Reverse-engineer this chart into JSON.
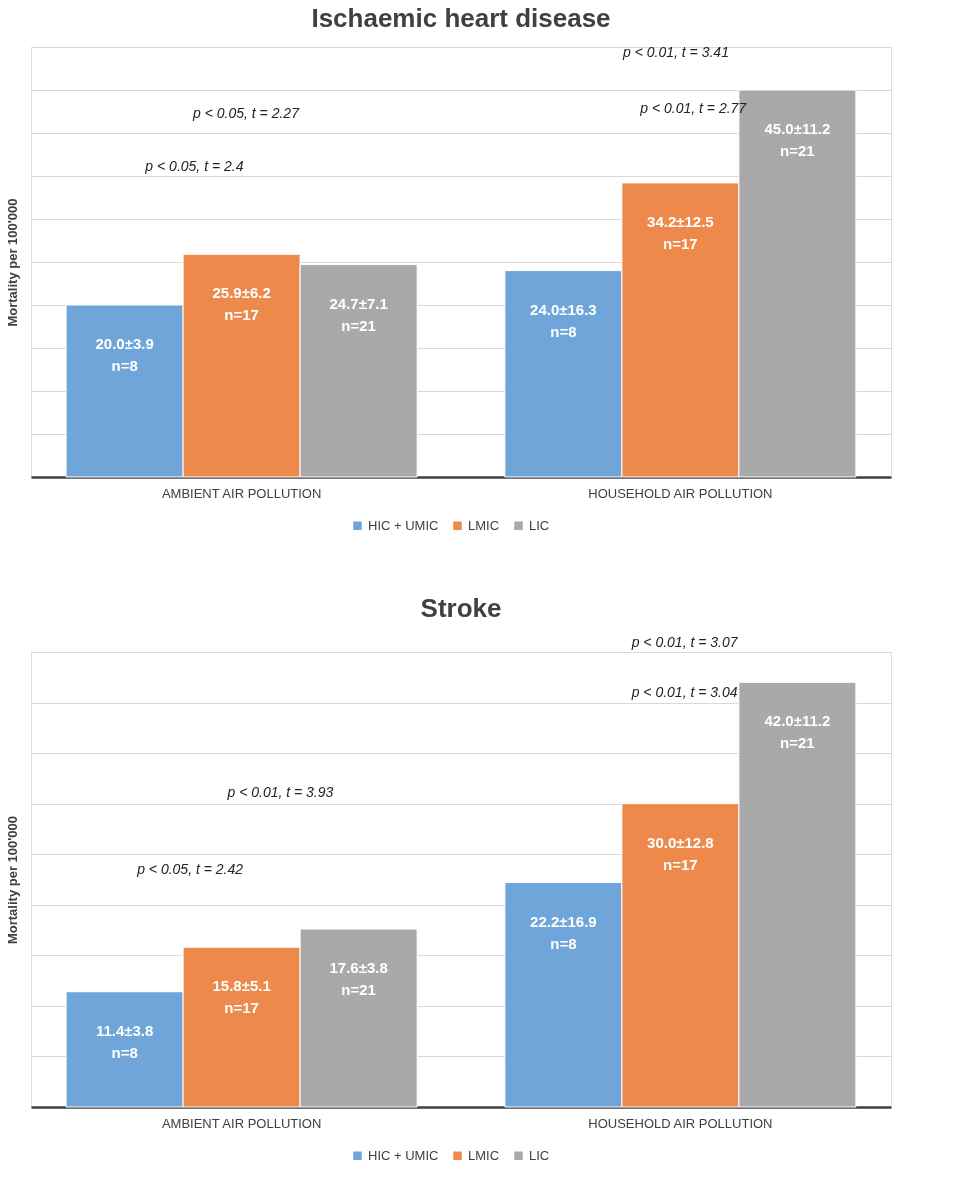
{
  "chart_data": [
    {
      "type": "bar",
      "title": "Ischaemic heart disease",
      "ylabel": "Mortality per 100'000",
      "categories": [
        "AMBIENT AIR POLLUTION",
        "HOUSEHOLD AIR POLLUTION"
      ],
      "ylim": [
        0,
        50
      ],
      "yticks": [
        {
          "value": 0,
          "label": null
        },
        {
          "value": 5,
          "label": null
        },
        {
          "value": 10,
          "label": null
        },
        {
          "value": 15,
          "label": null
        },
        {
          "value": 20,
          "label": null
        },
        {
          "value": 25,
          "label": null
        },
        {
          "value": 30,
          "label": null
        },
        {
          "value": 35,
          "label": null
        },
        {
          "value": 40,
          "label": null
        },
        {
          "value": 45,
          "label": null
        },
        {
          "value": 50,
          "label": null
        }
      ],
      "grid": "y",
      "tick_labels": "x",
      "legend": "bottom",
      "series": [
        {
          "name": "HIC + UMIC",
          "color": "#6fa5d8",
          "values": [
            20.0,
            24.0
          ],
          "value_labels": [
            "20.0±3.9\nn=8",
            "24.0±16.3\nn=8"
          ]
        },
        {
          "name": "LMIC",
          "color": "#ed8a4b",
          "values": [
            25.9,
            34.2
          ],
          "value_labels": [
            "25.9±6.2\nn=17",
            "34.2±12.5\nn=17"
          ]
        },
        {
          "name": "LIC",
          "color": "#a9a9a9",
          "values": [
            24.7,
            45.0
          ],
          "value_labels": [
            "24.7±7.1\nn=21",
            "45.0±11.2\nn=21"
          ]
        }
      ],
      "annotations": [
        "p < 0.05, t = 2.27",
        "p < 0.05, t = 2.4",
        "p < 0.01, t = 3.41",
        "p < 0.01, t = 2.77"
      ]
    },
    {
      "type": "bar",
      "title": "Stroke",
      "ylabel": "Mortality per 100'000",
      "categories": [
        "AMBIENT AIR POLLUTION",
        "HOUSEHOLD AIR POLLUTION"
      ],
      "ylim": [
        0,
        45
      ],
      "yticks": [
        {
          "value": 0,
          "label": null
        },
        {
          "value": 5,
          "label": null
        },
        {
          "value": 10,
          "label": null
        },
        {
          "value": 15,
          "label": null
        },
        {
          "value": 20,
          "label": null
        },
        {
          "value": 25,
          "label": null
        },
        {
          "value": 30,
          "label": null
        },
        {
          "value": 35,
          "label": null
        },
        {
          "value": 40,
          "label": null
        },
        {
          "value": 45,
          "label": null
        }
      ],
      "grid": "y",
      "tick_labels": "x",
      "legend": "bottom",
      "series": [
        {
          "name": "HIC + UMIC",
          "color": "#6fa5d8",
          "values": [
            11.4,
            22.2
          ],
          "value_labels": [
            "11.4±3.8\nn=8",
            "22.2±16.9\nn=8"
          ]
        },
        {
          "name": "LMIC",
          "color": "#ed8a4b",
          "values": [
            15.8,
            30.0
          ],
          "value_labels": [
            "15.8±5.1\nn=17",
            "30.0±12.8\nn=17"
          ]
        },
        {
          "name": "LIC",
          "color": "#a9a9a9",
          "values": [
            17.6,
            42.0
          ],
          "value_labels": [
            "17.6±3.8\nn=21",
            "42.0±11.2\nn=21"
          ]
        }
      ],
      "annotations": [
        "p < 0.01, t = 3.93",
        "p < 0.05, t = 2.42",
        "p < 0.01, t = 3.07",
        "p < 0.01, t = 3.04"
      ]
    }
  ]
}
